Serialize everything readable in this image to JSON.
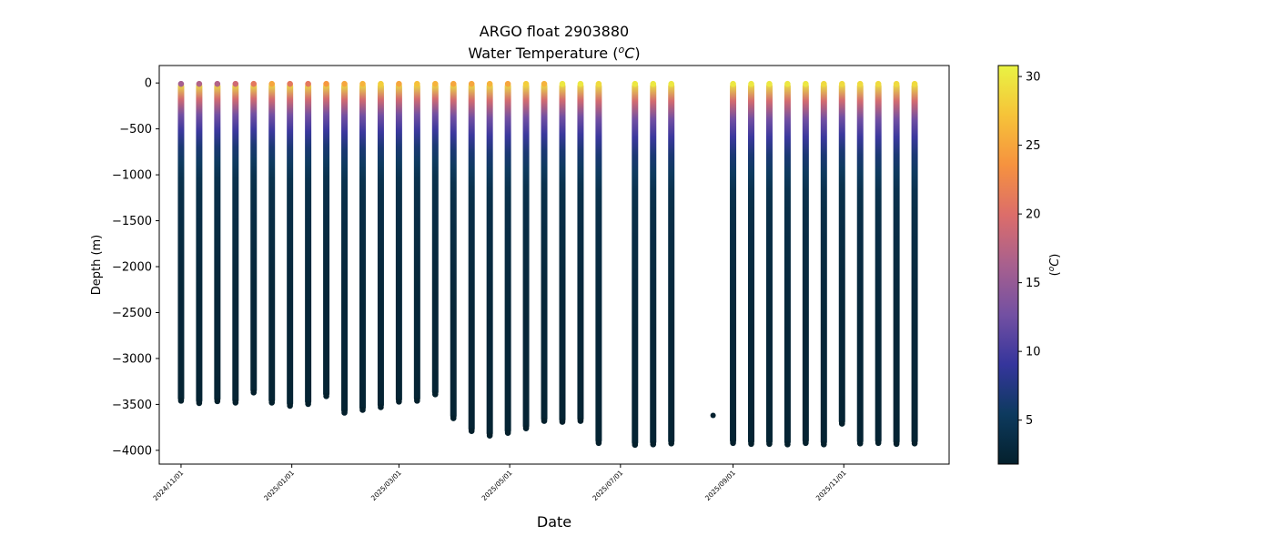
{
  "chart_data": {
    "type": "scatter",
    "title": "ARGO float 2903880",
    "subtitle_prefix": "Water Temperature (",
    "subtitle_unit_o": "o",
    "subtitle_unit_c": "C",
    "subtitle_suffix": ")",
    "xlabel": "Date",
    "ylabel": "Depth (m)",
    "xlim": [
      "2024-10-20",
      "2025-12-29"
    ],
    "ylim": [
      -4150,
      190
    ],
    "x_ticks": [
      "2024/11/01",
      "2025/01/01",
      "2025/03/01",
      "2025/05/01",
      "2025/07/01",
      "2025/09/01",
      "2025/11/01"
    ],
    "y_ticks": [
      0,
      -500,
      -1000,
      -1500,
      -2000,
      -2500,
      -3000,
      -3500,
      -4000
    ],
    "grid": false,
    "colorbar": {
      "label_prefix": "(",
      "label_o": "o",
      "label_c": "C",
      "label_suffix": ")",
      "range": [
        1.8,
        30.8
      ],
      "ticks": [
        5,
        10,
        15,
        20,
        25,
        30
      ],
      "colormap": "thermal",
      "stops": [
        "#04202c",
        "#0d3a5e",
        "#35359c",
        "#7350a2",
        "#a8608e",
        "#dc6d6a",
        "#f6923f",
        "#f6c339",
        "#e9f343"
      ]
    },
    "profiles": [
      {
        "date": "2024-11-01",
        "max_depth": -3470,
        "surface_temp": 16
      },
      {
        "date": "2024-11-11",
        "max_depth": -3495,
        "surface_temp": 17
      },
      {
        "date": "2024-11-21",
        "max_depth": -3475,
        "surface_temp": 17
      },
      {
        "date": "2024-12-01",
        "max_depth": -3490,
        "surface_temp": 19
      },
      {
        "date": "2024-12-11",
        "max_depth": -3380,
        "surface_temp": 21
      },
      {
        "date": "2024-12-21",
        "max_depth": -3490,
        "surface_temp": 25
      },
      {
        "date": "2024-12-31",
        "max_depth": -3525,
        "surface_temp": 21
      },
      {
        "date": "2025-01-10",
        "max_depth": -3505,
        "surface_temp": 21
      },
      {
        "date": "2025-01-20",
        "max_depth": -3420,
        "surface_temp": 24
      },
      {
        "date": "2025-01-30",
        "max_depth": -3600,
        "surface_temp": 25
      },
      {
        "date": "2025-02-09",
        "max_depth": -3570,
        "surface_temp": 26
      },
      {
        "date": "2025-02-19",
        "max_depth": -3540,
        "surface_temp": 28
      },
      {
        "date": "2025-03-01",
        "max_depth": -3480,
        "surface_temp": 25
      },
      {
        "date": "2025-03-11",
        "max_depth": -3470,
        "surface_temp": 27
      },
      {
        "date": "2025-03-21",
        "max_depth": -3400,
        "surface_temp": 26
      },
      {
        "date": "2025-03-31",
        "max_depth": -3660,
        "surface_temp": 25
      },
      {
        "date": "2025-04-10",
        "max_depth": -3800,
        "surface_temp": 25
      },
      {
        "date": "2025-04-20",
        "max_depth": -3850,
        "surface_temp": 26
      },
      {
        "date": "2025-04-30",
        "max_depth": -3820,
        "surface_temp": 25
      },
      {
        "date": "2025-05-10",
        "max_depth": -3770,
        "surface_temp": 28
      },
      {
        "date": "2025-05-20",
        "max_depth": -3690,
        "surface_temp": 26
      },
      {
        "date": "2025-05-30",
        "max_depth": -3700,
        "surface_temp": 30
      },
      {
        "date": "2025-06-09",
        "max_depth": -3690,
        "surface_temp": 30
      },
      {
        "date": "2025-06-19",
        "max_depth": -3930,
        "surface_temp": 29
      },
      {
        "date": "2025-07-09",
        "max_depth": -3950,
        "surface_temp": 30
      },
      {
        "date": "2025-07-19",
        "max_depth": -3945,
        "surface_temp": 30
      },
      {
        "date": "2025-07-29",
        "max_depth": -3935,
        "surface_temp": 30
      },
      {
        "date": "2025-09-01",
        "max_depth": -3930,
        "surface_temp": 30
      },
      {
        "date": "2025-09-11",
        "max_depth": -3940,
        "surface_temp": 30
      },
      {
        "date": "2025-09-21",
        "max_depth": -3940,
        "surface_temp": 30
      },
      {
        "date": "2025-10-01",
        "max_depth": -3945,
        "surface_temp": 30
      },
      {
        "date": "2025-10-11",
        "max_depth": -3930,
        "surface_temp": 30
      },
      {
        "date": "2025-10-21",
        "max_depth": -3945,
        "surface_temp": 29
      },
      {
        "date": "2025-10-31",
        "max_depth": -3720,
        "surface_temp": 29
      },
      {
        "date": "2025-11-10",
        "max_depth": -3935,
        "surface_temp": 29
      },
      {
        "date": "2025-11-20",
        "max_depth": -3930,
        "surface_temp": 29
      },
      {
        "date": "2025-11-30",
        "max_depth": -3940,
        "surface_temp": 29
      },
      {
        "date": "2025-12-10",
        "max_depth": -3935,
        "surface_temp": 29
      }
    ],
    "isolated_points": [
      {
        "date": "2025-08-21",
        "depth": -3620,
        "temp": 2
      }
    ]
  }
}
